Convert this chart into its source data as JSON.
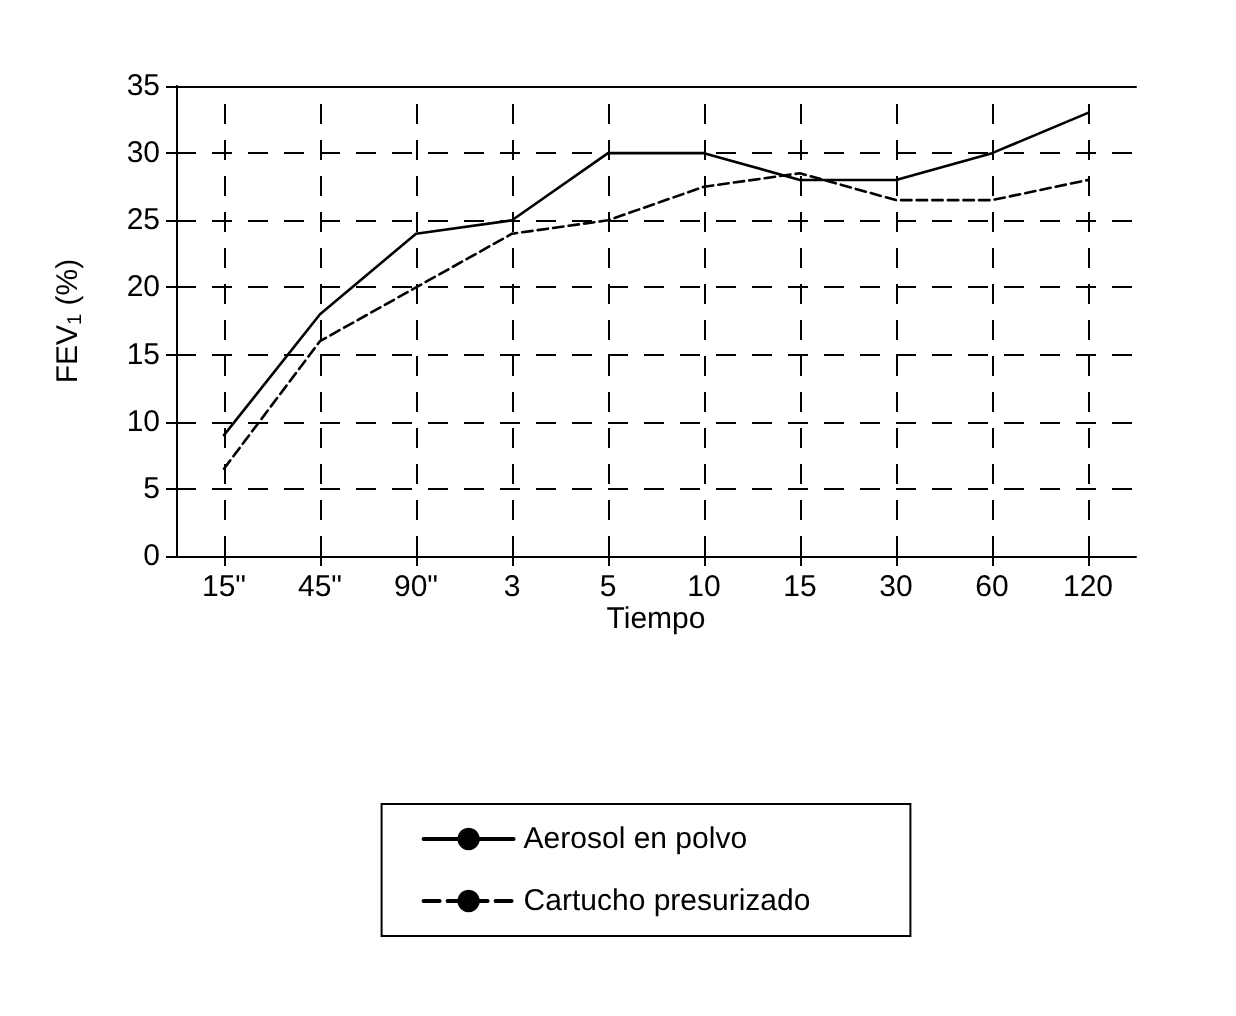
{
  "chart_data": {
    "type": "line",
    "xlabel": "Tiempo",
    "ylabel": "FEV$_{1}$ (%)",
    "categories": [
      "15\"",
      "45\"",
      "90\"",
      "3",
      "5",
      "10",
      "15",
      "30",
      "60",
      "120"
    ],
    "series": [
      {
        "name": "Aerosol en polvo",
        "color": "#000000",
        "line_style": "solid",
        "values": [
          9,
          18,
          24,
          25,
          30,
          30,
          28,
          28,
          30,
          33
        ]
      },
      {
        "name": "Cartucho presurizado",
        "color": "#000000",
        "line_style": "dashed",
        "values": [
          6.5,
          16,
          20,
          24,
          25,
          27.5,
          28.5,
          26.5,
          26.5,
          28
        ]
      }
    ],
    "ylim": [
      0,
      35
    ],
    "yticks": [
      0,
      5,
      10,
      15,
      20,
      25,
      30,
      35
    ],
    "grid": true,
    "legend": "bottom",
    "marker": "none"
  }
}
